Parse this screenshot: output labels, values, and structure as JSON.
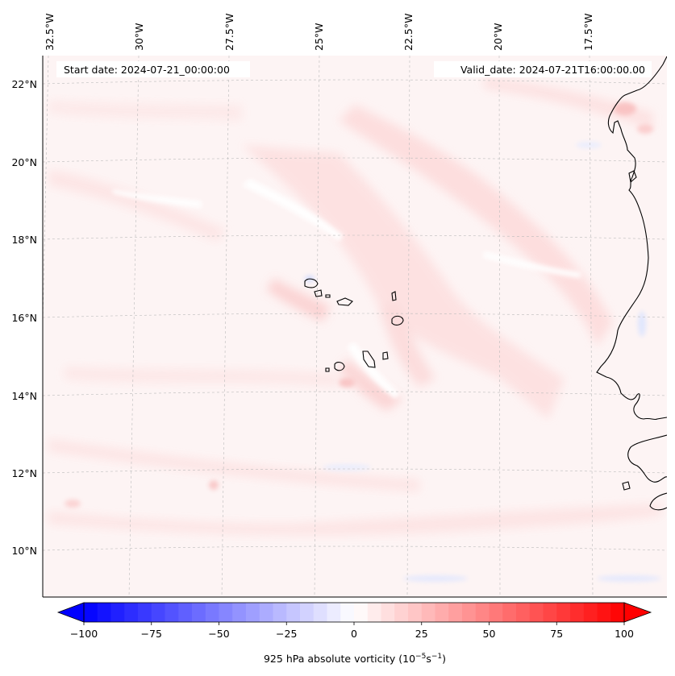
{
  "map": {
    "start_date": "Start date: 2024-07-21_00:00:00",
    "valid_date": "Valid_date: 2024-07-21T16:00:00.00",
    "lon_labels": [
      "32.5°W",
      "30°W",
      "27.5°W",
      "25°W",
      "22.5°W",
      "20°W",
      "17.5°W"
    ],
    "lat_labels": [
      "22°N",
      "20°N",
      "18°N",
      "16°N",
      "14°N",
      "12°N",
      "10°N"
    ],
    "field": "925 hPa absolute vorticity",
    "colors": {
      "neg_max": "#0000ff",
      "zero": "#ffffff",
      "pos_max": "#ff0000",
      "land_edge": "#000000",
      "grid": "#bbbbbb"
    }
  },
  "colorbar": {
    "label": "925 hPa absolute vorticity (10",
    "label_exp1": "−5",
    "label_mid": "s",
    "label_exp2": "−1",
    "label_end": ")",
    "min": -100,
    "max": 100,
    "extend": "both",
    "tick_labels": [
      "−100",
      "−75",
      "−50",
      "−25",
      "0",
      "25",
      "50",
      "75",
      "100"
    ]
  }
}
